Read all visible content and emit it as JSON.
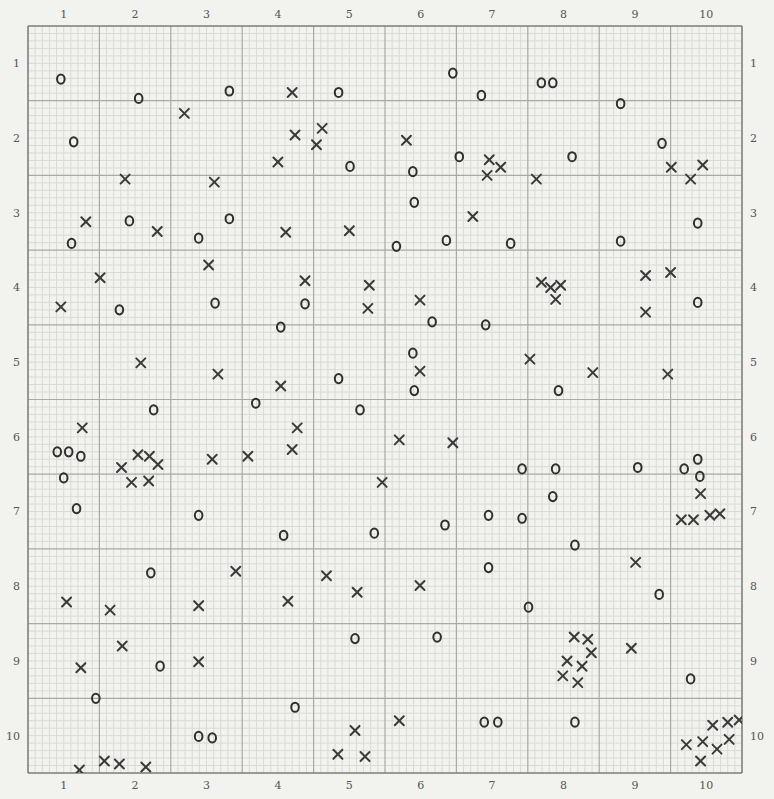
{
  "chart_data": {
    "type": "scatter",
    "grid": true,
    "xlim": [
      0.5,
      10.5
    ],
    "ylim": [
      10.5,
      0.5
    ],
    "xticks": [
      1,
      2,
      3,
      4,
      5,
      6,
      7,
      8,
      9,
      10
    ],
    "yticks": [
      1,
      2,
      3,
      4,
      5,
      6,
      7,
      8,
      9,
      10
    ],
    "series": [
      {
        "marker": "o",
        "color": "#2f2f2f",
        "x": [
          0.96,
          2.05,
          3.32,
          4.85,
          6.45,
          6.85,
          7.69,
          7.85,
          8.8,
          1.14,
          5.01,
          5.89,
          6.54,
          8.12,
          9.38,
          5.91,
          1.11,
          1.92,
          2.89,
          3.32,
          5.66,
          6.36,
          7.26,
          8.8,
          9.88,
          1.78,
          3.12,
          4.38,
          4.04,
          6.16,
          6.91,
          9.88,
          5.89,
          2.26,
          4.85,
          5.91,
          3.69,
          5.15,
          7.93,
          0.91,
          1.07,
          1.24,
          1.0,
          1.18,
          7.42,
          7.89,
          9.04,
          9.69,
          9.88,
          9.91,
          2.89,
          4.08,
          5.35,
          6.34,
          6.95,
          7.42,
          7.85,
          8.16,
          2.22,
          6.95,
          7.51,
          9.34,
          6.23,
          5.08,
          2.35,
          1.45,
          9.78,
          4.24,
          2.89,
          3.08,
          6.89,
          7.08,
          8.16
        ],
        "y": [
          1.21,
          1.47,
          1.37,
          1.39,
          1.13,
          1.43,
          1.26,
          1.26,
          1.54,
          2.05,
          2.38,
          2.45,
          2.25,
          2.25,
          2.07,
          2.86,
          3.41,
          3.11,
          3.34,
          3.08,
          3.45,
          3.37,
          3.41,
          3.38,
          3.14,
          4.3,
          4.21,
          4.22,
          4.53,
          4.46,
          4.5,
          4.2,
          4.88,
          5.64,
          5.22,
          5.38,
          5.55,
          5.64,
          5.38,
          6.2,
          6.2,
          6.26,
          6.55,
          6.96,
          6.43,
          6.43,
          6.41,
          6.43,
          6.3,
          6.53,
          7.05,
          7.32,
          7.29,
          7.18,
          7.05,
          7.09,
          6.8,
          7.45,
          7.82,
          7.75,
          8.28,
          8.11,
          8.68,
          8.7,
          9.07,
          9.5,
          9.24,
          9.62,
          10.01,
          10.03,
          9.82,
          9.82,
          9.82
        ]
      },
      {
        "marker": "x",
        "color": "#3a3a3a",
        "x": [
          2.69,
          4.2,
          4.24,
          4.62,
          4.54,
          4.0,
          5.8,
          1.86,
          3.11,
          6.96,
          7.12,
          6.93,
          7.62,
          9.51,
          9.95,
          9.78,
          1.31,
          2.31,
          4.11,
          5.0,
          6.73,
          1.51,
          3.03,
          4.38,
          5.28,
          5.99,
          5.26,
          0.96,
          7.69,
          7.82,
          7.96,
          7.89,
          9.15,
          9.5,
          9.15,
          2.08,
          3.16,
          4.04,
          5.99,
          7.53,
          8.41,
          9.46,
          1.26,
          4.27,
          5.7,
          4.2,
          6.45,
          1.81,
          2.04,
          2.2,
          2.32,
          1.95,
          2.19,
          3.08,
          3.58,
          5.46,
          9.92,
          9.65,
          9.82,
          10.05,
          10.19,
          3.41,
          4.68,
          5.11,
          5.99,
          9.01,
          1.04,
          1.65,
          2.89,
          4.14,
          1.82,
          1.24,
          2.89,
          8.15,
          8.34,
          8.05,
          8.26,
          8.39,
          7.99,
          8.2,
          8.95,
          5.08,
          5.7,
          1.22,
          1.57,
          1.78,
          2.15,
          4.84,
          5.22,
          9.72,
          9.95,
          10.09,
          10.3,
          10.32,
          10.46,
          9.92,
          10.15
        ],
        "y": [
          1.67,
          1.39,
          1.96,
          1.87,
          2.09,
          2.32,
          2.03,
          2.55,
          2.59,
          2.29,
          2.39,
          2.5,
          2.55,
          2.39,
          2.36,
          2.55,
          3.12,
          3.25,
          3.26,
          3.24,
          3.05,
          3.87,
          3.7,
          3.91,
          3.97,
          4.17,
          4.28,
          4.26,
          3.93,
          4.0,
          3.97,
          4.16,
          3.84,
          3.8,
          4.33,
          5.01,
          5.16,
          5.32,
          5.12,
          4.96,
          5.14,
          5.16,
          5.88,
          5.88,
          6.04,
          6.17,
          6.08,
          6.41,
          6.24,
          6.26,
          6.37,
          6.61,
          6.59,
          6.3,
          6.26,
          6.61,
          6.76,
          7.11,
          7.11,
          7.05,
          7.03,
          7.8,
          7.86,
          8.08,
          7.99,
          7.68,
          8.21,
          8.32,
          8.26,
          8.2,
          8.8,
          9.09,
          9.01,
          8.68,
          8.71,
          9.0,
          9.07,
          8.89,
          9.2,
          9.29,
          8.83,
          9.93,
          9.8,
          10.46,
          10.34,
          10.38,
          10.42,
          10.25,
          10.28,
          10.12,
          10.08,
          9.86,
          9.82,
          10.05,
          9.79,
          10.34,
          10.18
        ]
      }
    ]
  }
}
